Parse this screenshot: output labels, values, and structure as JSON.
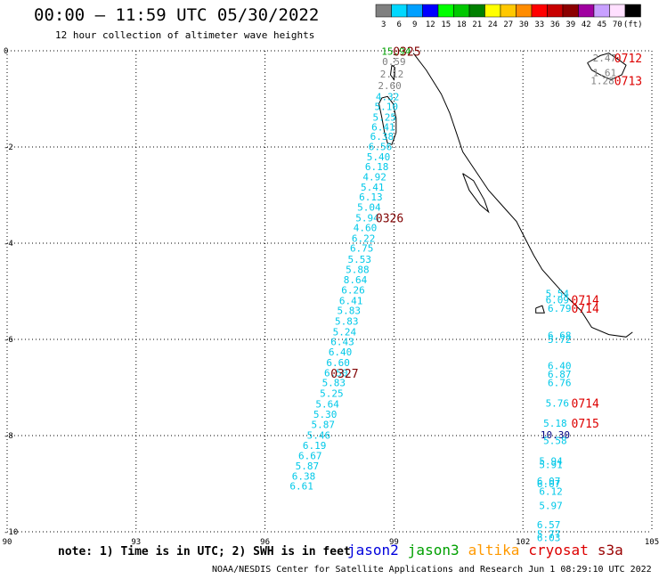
{
  "header": {
    "title": "00:00 – 11:59 UTC 05/30/2022",
    "subtitle": "12 hour collection of altimeter wave heights"
  },
  "colorbar": {
    "swatches": [
      "#808080",
      "#00d8ff",
      "#00a0ff",
      "#0000ff",
      "#00ff00",
      "#00c800",
      "#008000",
      "#ffff00",
      "#ffc800",
      "#ff8c00",
      "#ff0000",
      "#c80000",
      "#8c0000",
      "#a000a0",
      "#c8a0ff",
      "#ffe0ff",
      "#000000"
    ],
    "labels": [
      "3",
      "6",
      "9",
      "12",
      "15",
      "18",
      "21",
      "24",
      "27",
      "30",
      "33",
      "36",
      "39",
      "42",
      "45",
      "70",
      "(ft)"
    ]
  },
  "map": {
    "x_range": [
      90,
      105
    ],
    "y_range": [
      -10,
      0
    ],
    "x_ticks": [
      "90",
      "93",
      "96",
      "99",
      "102",
      "105"
    ],
    "y_ticks": [
      "0",
      "-2",
      "-4",
      "-6",
      "-8",
      "-10"
    ],
    "colors": {
      "cyan": "#00c8e8",
      "gray": "#808080",
      "green": "#00a000",
      "darkred": "#800000",
      "red": "#dd0000",
      "navy": "#000080"
    },
    "tracks": [
      {
        "name": "track-west",
        "points": [
          [
            99.05,
            -0.01,
            "15.94",
            "green"
          ],
          [
            99.0,
            -0.22,
            "0.59",
            "gray"
          ],
          [
            98.95,
            -0.48,
            "2.12",
            "gray"
          ],
          [
            98.9,
            -0.72,
            "2.60",
            "gray"
          ],
          [
            98.85,
            -0.95,
            "4.32",
            "cyan"
          ],
          [
            98.82,
            -1.16,
            "5.10",
            "cyan"
          ],
          [
            98.78,
            -1.38,
            "5.25",
            "cyan"
          ],
          [
            98.75,
            -1.58,
            "6.41",
            "cyan"
          ],
          [
            98.72,
            -1.78,
            "6.38",
            "cyan"
          ],
          [
            98.68,
            -1.99,
            "6.56",
            "cyan"
          ],
          [
            98.64,
            -2.2,
            "5.40",
            "cyan"
          ],
          [
            98.6,
            -2.41,
            "6.18",
            "cyan"
          ],
          [
            98.55,
            -2.62,
            "4.92",
            "cyan"
          ],
          [
            98.5,
            -2.83,
            "5.41",
            "cyan"
          ],
          [
            98.46,
            -3.04,
            "6.13",
            "cyan"
          ],
          [
            98.42,
            -3.25,
            "5.04",
            "cyan"
          ],
          [
            98.38,
            -3.47,
            "5.94",
            "cyan"
          ],
          [
            98.33,
            -3.68,
            "4.60",
            "cyan"
          ],
          [
            98.29,
            -3.9,
            "6.22",
            "cyan"
          ],
          [
            98.25,
            -4.1,
            "6.75",
            "cyan"
          ],
          [
            98.2,
            -4.33,
            "5.53",
            "cyan"
          ],
          [
            98.15,
            -4.55,
            "5.88",
            "cyan"
          ],
          [
            98.1,
            -4.76,
            "8.64",
            "cyan"
          ],
          [
            98.05,
            -4.97,
            "6.26",
            "cyan"
          ],
          [
            98.0,
            -5.19,
            "6.41",
            "cyan"
          ],
          [
            97.95,
            -5.4,
            "5.83",
            "cyan"
          ],
          [
            97.9,
            -5.62,
            "5.83",
            "cyan"
          ],
          [
            97.85,
            -5.84,
            "5.24",
            "cyan"
          ],
          [
            97.8,
            -6.05,
            "6.43",
            "cyan"
          ],
          [
            97.75,
            -6.26,
            "6.40",
            "cyan"
          ],
          [
            97.7,
            -6.48,
            "6.60",
            "cyan"
          ],
          [
            97.65,
            -6.69,
            "6.50",
            "cyan"
          ],
          [
            97.6,
            -6.9,
            "5.83",
            "cyan"
          ],
          [
            97.55,
            -7.12,
            "5.25",
            "cyan"
          ],
          [
            97.45,
            -7.34,
            "5.64",
            "cyan"
          ],
          [
            97.4,
            -7.56,
            "5.30",
            "cyan"
          ],
          [
            97.35,
            -7.77,
            "5.87",
            "cyan"
          ],
          [
            97.25,
            -7.99,
            "5.46",
            "cyan"
          ],
          [
            97.15,
            -8.2,
            "6.19",
            "cyan"
          ],
          [
            97.05,
            -8.42,
            "6.67",
            "cyan"
          ],
          [
            96.98,
            -8.63,
            "5.87",
            "cyan"
          ],
          [
            96.9,
            -8.84,
            "6.38",
            "cyan"
          ],
          [
            96.85,
            -9.05,
            "6.61",
            "cyan"
          ]
        ]
      },
      {
        "name": "track-east-top",
        "points": [
          [
            103.9,
            -0.15,
            "2.47",
            "gray"
          ],
          [
            103.9,
            -0.45,
            "1.61",
            "gray"
          ],
          [
            103.85,
            -0.62,
            "1.28",
            "gray"
          ]
        ]
      },
      {
        "name": "track-east",
        "points": [
          [
            102.8,
            -5.05,
            "5.54",
            "cyan"
          ],
          [
            102.8,
            -5.18,
            "6.09",
            "cyan"
          ],
          [
            102.85,
            -5.35,
            "6.79",
            "cyan"
          ],
          [
            102.85,
            -5.92,
            "6.68",
            "cyan"
          ],
          [
            102.85,
            -6.0,
            "5.72",
            "cyan"
          ],
          [
            102.85,
            -6.55,
            "6.40",
            "cyan"
          ],
          [
            102.85,
            -6.72,
            "6.87",
            "cyan"
          ],
          [
            102.85,
            -6.9,
            "6.76",
            "cyan"
          ],
          [
            102.8,
            -7.32,
            "5.76",
            "cyan"
          ],
          [
            102.75,
            -7.74,
            "5.18",
            "cyan"
          ],
          [
            102.75,
            -7.98,
            "10.30",
            "navy"
          ],
          [
            102.75,
            -8.1,
            "5.58",
            "cyan"
          ],
          [
            102.65,
            -8.53,
            "5.94",
            "cyan"
          ],
          [
            102.65,
            -8.6,
            "5.91",
            "cyan"
          ],
          [
            102.6,
            -8.94,
            "6.07",
            "cyan"
          ],
          [
            102.6,
            -9.0,
            "6.07",
            "cyan"
          ],
          [
            102.65,
            -9.16,
            "6.12",
            "cyan"
          ],
          [
            102.65,
            -9.45,
            "5.97",
            "cyan"
          ],
          [
            102.6,
            -9.85,
            "6.57",
            "cyan"
          ],
          [
            102.6,
            -10.05,
            "5.77",
            "cyan"
          ],
          [
            102.6,
            -10.12,
            "6.03",
            "cyan"
          ]
        ]
      }
    ],
    "time_labels": [
      {
        "x": 99.3,
        "y": -0.01,
        "text": "0325",
        "color": "darkred"
      },
      {
        "x": 98.9,
        "y": -3.47,
        "text": "0326",
        "color": "darkred"
      },
      {
        "x": 97.85,
        "y": -6.7,
        "text": "0327",
        "color": "darkred"
      },
      {
        "x": 104.45,
        "y": -0.15,
        "text": "0712",
        "color": "red"
      },
      {
        "x": 104.45,
        "y": -0.62,
        "text": "0713",
        "color": "red"
      },
      {
        "x": 103.45,
        "y": -5.18,
        "text": "0714",
        "color": "red"
      },
      {
        "x": 103.45,
        "y": -5.35,
        "text": "0714",
        "color": "red"
      },
      {
        "x": 103.45,
        "y": -7.32,
        "text": "0714",
        "color": "red"
      },
      {
        "x": 103.45,
        "y": -7.74,
        "text": "0715",
        "color": "red"
      }
    ],
    "coastlines": [
      [
        [
          98.65,
          -1.1
        ],
        [
          98.72,
          -1.4
        ],
        [
          98.78,
          -1.7
        ],
        [
          98.85,
          -1.92
        ],
        [
          98.95,
          -1.95
        ],
        [
          99.05,
          -1.7
        ],
        [
          99.05,
          -1.4
        ],
        [
          98.98,
          -1.1
        ],
        [
          98.85,
          -0.95
        ],
        [
          98.72,
          -0.98
        ],
        [
          98.65,
          -1.1
        ]
      ],
      [
        [
          98.95,
          -0.3
        ],
        [
          99.02,
          -0.35
        ],
        [
          99.0,
          -0.6
        ],
        [
          98.92,
          -0.5
        ],
        [
          98.95,
          -0.3
        ]
      ],
      [
        [
          99.45,
          -0.05
        ],
        [
          99.75,
          -0.4
        ],
        [
          100.1,
          -0.9
        ],
        [
          100.3,
          -1.3
        ],
        [
          100.45,
          -1.7
        ],
        [
          100.6,
          -2.1
        ],
        [
          100.9,
          -2.5
        ],
        [
          101.2,
          -2.9
        ],
        [
          101.55,
          -3.25
        ],
        [
          101.85,
          -3.55
        ],
        [
          102.05,
          -3.9
        ],
        [
          102.25,
          -4.25
        ],
        [
          102.45,
          -4.55
        ],
        [
          102.75,
          -4.85
        ],
        [
          103.0,
          -5.1
        ],
        [
          103.35,
          -5.4
        ],
        [
          103.6,
          -5.75
        ],
        [
          104.0,
          -5.9
        ],
        [
          104.4,
          -5.95
        ],
        [
          104.55,
          -5.85
        ]
      ],
      [
        [
          103.5,
          -0.25
        ],
        [
          103.8,
          -0.1
        ],
        [
          104.0,
          -0.05
        ],
        [
          104.25,
          -0.2
        ],
        [
          104.4,
          -0.3
        ],
        [
          104.3,
          -0.5
        ],
        [
          104.05,
          -0.6
        ],
        [
          103.8,
          -0.5
        ],
        [
          103.6,
          -0.4
        ],
        [
          103.5,
          -0.25
        ]
      ],
      [
        [
          100.6,
          -2.55
        ],
        [
          100.85,
          -2.7
        ],
        [
          101.1,
          -3.1
        ],
        [
          101.2,
          -3.35
        ],
        [
          101.0,
          -3.2
        ],
        [
          100.75,
          -2.9
        ],
        [
          100.6,
          -2.55
        ]
      ],
      [
        [
          102.3,
          -5.35
        ],
        [
          102.45,
          -5.3
        ],
        [
          102.5,
          -5.45
        ],
        [
          102.3,
          -5.45
        ],
        [
          102.3,
          -5.35
        ]
      ]
    ]
  },
  "footer": {
    "note": "note:  1) Time is in UTC;  2) SWH is in feet",
    "satellites": [
      {
        "label": "jason2",
        "color": "#0000dd"
      },
      {
        "label": "jason3",
        "color": "#00a000"
      },
      {
        "label": "altika",
        "color": "#ff9900"
      },
      {
        "label": "cryosat",
        "color": "#dd0000"
      },
      {
        "label": "s3a",
        "color": "#990000"
      }
    ],
    "credit": "NOAA/NESDIS Center for Satellite Applications and Research   Jun  1 08:29:10 UTC 2022"
  }
}
